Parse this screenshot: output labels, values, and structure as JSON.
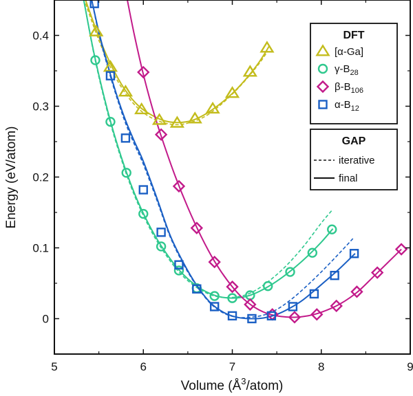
{
  "chart_data": {
    "type": "line",
    "xlabel_main": "Volume (Å",
    "xlabel_sup": "3",
    "xlabel_tail": "/atom)",
    "ylabel": "Energy (eV/atom)",
    "xlim": [
      5,
      9
    ],
    "ylim": [
      -0.05,
      0.45
    ],
    "xticks": [
      5,
      6,
      7,
      8,
      9
    ],
    "yticks": [
      0,
      0.1,
      0.2,
      0.3,
      0.4
    ],
    "ytick_labels": [
      "0",
      "0.1",
      "0.2",
      "0.3",
      "0.4"
    ],
    "grid": false,
    "legend": {
      "dft_title": "DFT",
      "gap_title": "GAP",
      "iterative_label": "iterative",
      "final_label": "final"
    },
    "series": [
      {
        "key": "ga",
        "label": "[α-Ga]",
        "label_sub": "",
        "marker": "triangle",
        "color": "#c3bc1c",
        "x": [
          5.47,
          5.63,
          5.8,
          5.98,
          6.18,
          6.38,
          6.58,
          6.78,
          7.0,
          7.2,
          7.39
        ],
        "y": [
          0.405,
          0.355,
          0.32,
          0.295,
          0.28,
          0.276,
          0.282,
          0.296,
          0.318,
          0.348,
          0.382
        ],
        "final_curve": {
          "x": [
            5.35,
            5.5,
            5.65,
            5.8,
            5.95,
            6.1,
            6.25,
            6.4,
            6.55,
            6.7,
            6.85,
            7.0,
            7.15,
            7.3,
            7.42
          ],
          "y": [
            0.45,
            0.398,
            0.355,
            0.322,
            0.3,
            0.287,
            0.279,
            0.277,
            0.28,
            0.289,
            0.302,
            0.318,
            0.338,
            0.362,
            0.386
          ]
        },
        "iterative_curve": {
          "x": [
            5.35,
            5.5,
            5.65,
            5.8,
            5.95,
            6.1,
            6.25,
            6.4,
            6.55,
            6.7,
            6.85,
            7.0,
            7.15,
            7.3,
            7.4
          ],
          "y": [
            0.445,
            0.393,
            0.35,
            0.318,
            0.296,
            0.283,
            0.276,
            0.274,
            0.278,
            0.286,
            0.3,
            0.317,
            0.337,
            0.36,
            0.378
          ]
        }
      },
      {
        "key": "gamma",
        "label": "γ-B",
        "label_sub": "28",
        "marker": "circle",
        "color": "#2fc88e",
        "x": [
          5.46,
          5.63,
          5.81,
          6.0,
          6.2,
          6.4,
          6.6,
          6.8,
          7.0,
          7.2,
          7.4,
          7.65,
          7.9,
          8.12
        ],
        "y": [
          0.365,
          0.278,
          0.206,
          0.148,
          0.102,
          0.068,
          0.043,
          0.032,
          0.029,
          0.033,
          0.046,
          0.066,
          0.093,
          0.126
        ],
        "final_curve": {
          "x": [
            5.33,
            5.45,
            5.6,
            5.75,
            5.9,
            6.05,
            6.2,
            6.4,
            6.6,
            6.8,
            7.0,
            7.2,
            7.4,
            7.6,
            7.8,
            8.0,
            8.13
          ],
          "y": [
            0.45,
            0.372,
            0.293,
            0.229,
            0.177,
            0.136,
            0.103,
            0.069,
            0.046,
            0.033,
            0.029,
            0.033,
            0.045,
            0.062,
            0.083,
            0.108,
            0.127
          ]
        },
        "iterative_curve": {
          "x": [
            5.33,
            5.45,
            5.6,
            5.75,
            5.9,
            6.05,
            6.2,
            6.4,
            6.6,
            6.8,
            7.0,
            7.2,
            7.4,
            7.6,
            7.8,
            8.0,
            8.12
          ],
          "y": [
            0.45,
            0.37,
            0.29,
            0.226,
            0.174,
            0.133,
            0.1,
            0.066,
            0.044,
            0.032,
            0.03,
            0.036,
            0.052,
            0.074,
            0.102,
            0.135,
            0.153
          ]
        }
      },
      {
        "key": "beta",
        "label": "β-B",
        "label_sub": "106",
        "marker": "diamond",
        "color": "#c21a8a",
        "x": [
          6.0,
          6.2,
          6.4,
          6.6,
          6.8,
          7.0,
          7.2,
          7.45,
          7.7,
          7.95,
          8.17,
          8.4,
          8.63,
          8.9
        ],
        "y": [
          0.348,
          0.26,
          0.187,
          0.128,
          0.08,
          0.045,
          0.02,
          0.006,
          0.002,
          0.006,
          0.018,
          0.038,
          0.065,
          0.098
        ],
        "final_curve": {
          "x": [
            5.82,
            5.9,
            6.0,
            6.1,
            6.2,
            6.35,
            6.5,
            6.65,
            6.8,
            6.95,
            7.1,
            7.25,
            7.4,
            7.55,
            7.7,
            7.85,
            8.0,
            8.2,
            8.4,
            8.6,
            8.9
          ],
          "y": [
            0.45,
            0.4,
            0.345,
            0.298,
            0.258,
            0.204,
            0.157,
            0.116,
            0.081,
            0.053,
            0.031,
            0.016,
            0.007,
            0.003,
            0.002,
            0.004,
            0.009,
            0.02,
            0.037,
            0.061,
            0.098
          ]
        },
        "iterative_curve": null
      },
      {
        "key": "alpha",
        "label": "α-B",
        "label_sub": "12",
        "marker": "square",
        "color": "#1a5fc4",
        "x": [
          5.45,
          5.63,
          5.8,
          6.0,
          6.2,
          6.4,
          6.6,
          6.8,
          7.0,
          7.22,
          7.44,
          7.68,
          7.92,
          8.15,
          8.37
        ],
        "y": [
          0.445,
          0.343,
          0.255,
          0.182,
          0.122,
          0.076,
          0.042,
          0.017,
          0.004,
          0.0,
          0.004,
          0.017,
          0.035,
          0.061,
          0.092
        ],
        "final_curve": {
          "x": [
            5.42,
            5.5,
            5.6,
            5.7,
            5.8,
            5.9,
            6.0,
            6.15,
            6.3,
            6.45,
            6.6,
            6.75,
            6.9,
            7.05,
            7.2,
            7.35,
            7.5,
            7.65,
            7.8,
            8.0,
            8.2,
            8.38
          ],
          "y": [
            0.45,
            0.405,
            0.358,
            0.316,
            0.28,
            0.25,
            0.222,
            0.171,
            0.118,
            0.079,
            0.047,
            0.023,
            0.009,
            0.002,
            0.0,
            0.001,
            0.006,
            0.015,
            0.027,
            0.048,
            0.07,
            0.092
          ]
        },
        "iterative_curve": {
          "x": [
            5.42,
            5.5,
            5.6,
            5.7,
            5.8,
            5.9,
            6.0,
            6.15,
            6.3,
            6.45,
            6.6,
            6.75,
            6.9,
            7.05,
            7.2,
            7.35,
            7.5,
            7.65,
            7.8,
            8.0,
            8.2,
            8.37
          ],
          "y": [
            0.45,
            0.402,
            0.355,
            0.313,
            0.276,
            0.246,
            0.218,
            0.168,
            0.116,
            0.077,
            0.046,
            0.022,
            0.008,
            0.002,
            0.002,
            0.005,
            0.013,
            0.026,
            0.042,
            0.066,
            0.092,
            0.115
          ]
        }
      }
    ]
  }
}
